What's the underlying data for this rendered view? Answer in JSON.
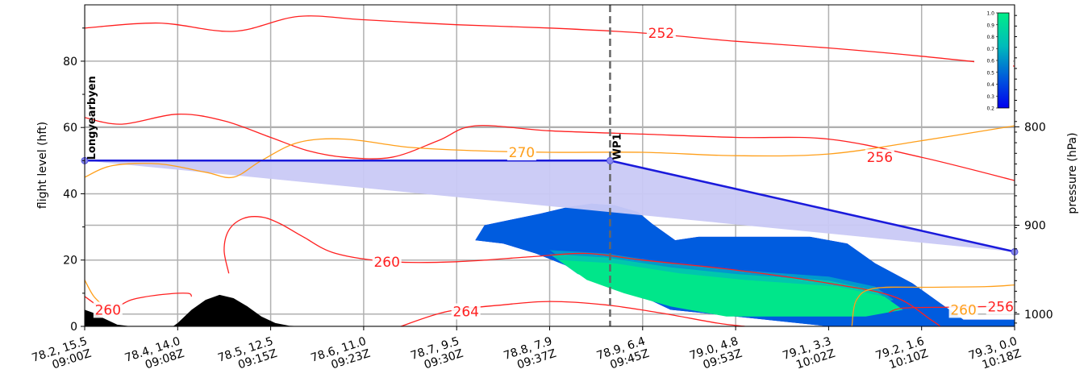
{
  "chart_data": {
    "type": "line",
    "title": "",
    "xlabel": "",
    "ylabel": "flight level (hft)",
    "ylabel_right": "pressure (hPa)",
    "ylim": [
      0,
      97
    ],
    "yticks": [
      "0",
      "20",
      "40",
      "60",
      "80"
    ],
    "pressure_ticks": [
      {
        "label": "800",
        "fl": 60.2
      },
      {
        "label": "900",
        "fl": 30.5
      },
      {
        "label": "1000",
        "fl": 3.7
      }
    ],
    "xticks": [
      {
        "x": 0,
        "line1": "78.2, 15.5",
        "line2": "09:00Z"
      },
      {
        "x": 1,
        "line1": "78.4, 14.0",
        "line2": "09:08Z"
      },
      {
        "x": 2,
        "line1": "78.5, 12.5",
        "line2": "09:15Z"
      },
      {
        "x": 3,
        "line1": "78.6, 11.0",
        "line2": "09:23Z"
      },
      {
        "x": 4,
        "line1": "78.7, 9.5",
        "line2": "09:30Z"
      },
      {
        "x": 5,
        "line1": "78.8, 7.9",
        "line2": "09:37Z"
      },
      {
        "x": 6,
        "line1": "78.9, 6.4",
        "line2": "09:45Z"
      },
      {
        "x": 7,
        "line1": "79.0, 4.8",
        "line2": "09:53Z"
      },
      {
        "x": 8,
        "line1": "79.1, 3.3",
        "line2": "10:02Z"
      },
      {
        "x": 9,
        "line1": "79.2, 1.6",
        "line2": "10:10Z"
      },
      {
        "x": 10,
        "line1": "79.3, 0.0",
        "line2": "10:18Z"
      }
    ],
    "waypoints": [
      {
        "name": "Longyearbyen",
        "x": 0,
        "fl": 50
      },
      {
        "name": "WP1",
        "x": 5.65,
        "fl": 50
      },
      {
        "name": "",
        "x": 10,
        "fl": 22.5
      }
    ],
    "flight_path_color": "#1a1adb",
    "flight_shade_color": "#c9c9f5",
    "terrain": {
      "color": "#000000",
      "points": [
        [
          0,
          5
        ],
        [
          0.1,
          4
        ],
        [
          0.2,
          2.5
        ],
        [
          0.35,
          0.5
        ],
        [
          0.5,
          0
        ],
        [
          0.95,
          0
        ],
        [
          1.0,
          1
        ],
        [
          1.15,
          5
        ],
        [
          1.3,
          8
        ],
        [
          1.45,
          9.5
        ],
        [
          1.6,
          8.5
        ],
        [
          1.75,
          6
        ],
        [
          1.9,
          3
        ],
        [
          2.05,
          1
        ],
        [
          2.2,
          0.2
        ],
        [
          2.35,
          0
        ],
        [
          10,
          0
        ]
      ]
    },
    "isotherms": [
      {
        "label": "252",
        "label_x": 6.2,
        "color": "#ff2020",
        "points": [
          [
            0,
            90
          ],
          [
            0.8,
            91.5
          ],
          [
            1.6,
            89
          ],
          [
            2.3,
            93.5
          ],
          [
            3,
            92.5
          ],
          [
            4,
            91
          ],
          [
            5,
            90
          ],
          [
            6,
            88.5
          ],
          [
            7,
            86
          ],
          [
            8,
            84
          ],
          [
            9,
            81.5
          ],
          [
            10,
            78.5
          ]
        ]
      },
      {
        "label": "256",
        "label_x": 8.55,
        "color": "#ff2020",
        "points": [
          [
            0,
            63
          ],
          [
            0.4,
            61
          ],
          [
            1,
            64
          ],
          [
            1.5,
            62
          ],
          [
            2,
            57
          ],
          [
            2.4,
            53
          ],
          [
            2.8,
            51
          ],
          [
            3.3,
            51
          ],
          [
            3.8,
            56
          ],
          [
            4.2,
            60.5
          ],
          [
            5,
            59
          ],
          [
            6,
            58
          ],
          [
            7,
            57
          ],
          [
            8,
            56.5
          ],
          [
            9,
            51
          ],
          [
            10,
            44
          ]
        ]
      },
      {
        "label": "270",
        "label_x": 4.7,
        "color": "#ff9f1a",
        "points": [
          [
            0,
            45
          ],
          [
            0.3,
            48.5
          ],
          [
            0.8,
            49
          ],
          [
            1.3,
            46.5
          ],
          [
            1.6,
            45
          ],
          [
            1.9,
            50
          ],
          [
            2.3,
            55.5
          ],
          [
            2.8,
            56.5
          ],
          [
            3.5,
            54
          ],
          [
            4.2,
            53
          ],
          [
            5,
            52.5
          ],
          [
            6,
            52.5
          ],
          [
            7,
            51.5
          ],
          [
            8,
            52
          ],
          [
            9,
            56
          ],
          [
            10,
            60.5
          ]
        ]
      },
      {
        "label": "260",
        "label_x": 3.25,
        "color": "#ff2020",
        "points": [
          [
            1.55,
            16
          ],
          [
            1.5,
            23
          ],
          [
            1.55,
            29
          ],
          [
            1.7,
            32.5
          ],
          [
            1.9,
            33
          ],
          [
            2.1,
            31
          ],
          [
            2.35,
            27
          ],
          [
            2.7,
            22
          ],
          [
            3.3,
            19.5
          ],
          [
            4,
            19.5
          ],
          [
            4.8,
            21
          ],
          [
            5.4,
            22
          ],
          [
            6,
            20
          ],
          [
            7,
            17
          ],
          [
            8,
            13
          ],
          [
            8.7,
            9
          ],
          [
            9.1,
            2
          ],
          [
            9.2,
            0
          ]
        ]
      },
      {
        "label": "260",
        "label_x": 0.25,
        "color": "#ff2020",
        "points": [
          [
            0,
            9
          ],
          [
            0.25,
            5
          ],
          [
            0.5,
            8
          ],
          [
            0.8,
            9.5
          ],
          [
            1.1,
            10
          ],
          [
            1.15,
            9
          ]
        ]
      },
      {
        "label": "264",
        "label_x": 4.1,
        "color": "#ff2020",
        "points": [
          [
            3.4,
            0
          ],
          [
            3.9,
            4.5
          ],
          [
            4.5,
            6.5
          ],
          [
            5,
            7.5
          ],
          [
            5.6,
            6.5
          ],
          [
            6.2,
            4
          ],
          [
            6.8,
            1
          ],
          [
            7.1,
            0
          ]
        ]
      },
      {
        "label": "260",
        "label_x": 9.45,
        "color": "#ff9f1a",
        "points": [
          [
            0,
            14
          ],
          [
            0.1,
            9
          ],
          [
            0.25,
            5
          ]
        ]
      },
      {
        "label": "",
        "label_x": 0,
        "color": "#ff9f1a",
        "points": [
          [
            8.25,
            0
          ],
          [
            8.3,
            8
          ],
          [
            8.5,
            11.5
          ],
          [
            9.1,
            11.8
          ],
          [
            9.7,
            12
          ],
          [
            10,
            12.5
          ]
        ]
      },
      {
        "label": "256",
        "label_x": 9.85,
        "color": "#ff2020",
        "points": [
          [
            8.65,
            4.2
          ],
          [
            8.8,
            5.5
          ],
          [
            9.3,
            5.8
          ],
          [
            9.8,
            6
          ],
          [
            10,
            6
          ]
        ]
      }
    ],
    "cloud_field": {
      "outline": [
        [
          4.2,
          26
        ],
        [
          4.3,
          30.5
        ],
        [
          4.9,
          34
        ],
        [
          5.2,
          36
        ],
        [
          5.45,
          37
        ],
        [
          5.7,
          36.5
        ],
        [
          5.95,
          34.5
        ],
        [
          6.1,
          31
        ],
        [
          6.35,
          26
        ],
        [
          6.6,
          27
        ],
        [
          7.2,
          27
        ],
        [
          7.8,
          27
        ],
        [
          8.2,
          25
        ],
        [
          8.5,
          19
        ],
        [
          8.9,
          13
        ],
        [
          9.2,
          7
        ],
        [
          9.45,
          2
        ],
        [
          10,
          2
        ],
        [
          10,
          0
        ],
        [
          8,
          0
        ],
        [
          7,
          3
        ],
        [
          6.3,
          5
        ],
        [
          6.0,
          9
        ],
        [
          5.6,
          13
        ],
        [
          5.3,
          17
        ],
        [
          4.85,
          22
        ],
        [
          4.5,
          25
        ]
      ],
      "core": [
        [
          5.0,
          23
        ],
        [
          5.6,
          22
        ],
        [
          6.3,
          19
        ],
        [
          7,
          17
        ],
        [
          8,
          15
        ],
        [
          8.5,
          12
        ],
        [
          8.7,
          8
        ],
        [
          8.3,
          5
        ],
        [
          7.5,
          4.5
        ],
        [
          6.8,
          6
        ],
        [
          6.2,
          9
        ],
        [
          5.7,
          13
        ],
        [
          5.3,
          17
        ]
      ],
      "colors": [
        "#0000ee",
        "#0066dd",
        "#0099cc",
        "#00ccaa",
        "#00e68a"
      ]
    },
    "colorbar": {
      "ticks": [
        "1.0",
        "0.9",
        "0.8",
        "0.7",
        "0.6",
        "0.5",
        "0.4",
        "0.3",
        "0.2"
      ],
      "colors": [
        "#00ee88",
        "#00ccaa",
        "#00aacc",
        "#0077dd",
        "#0033ee",
        "#0000ee"
      ]
    },
    "grid": true
  }
}
